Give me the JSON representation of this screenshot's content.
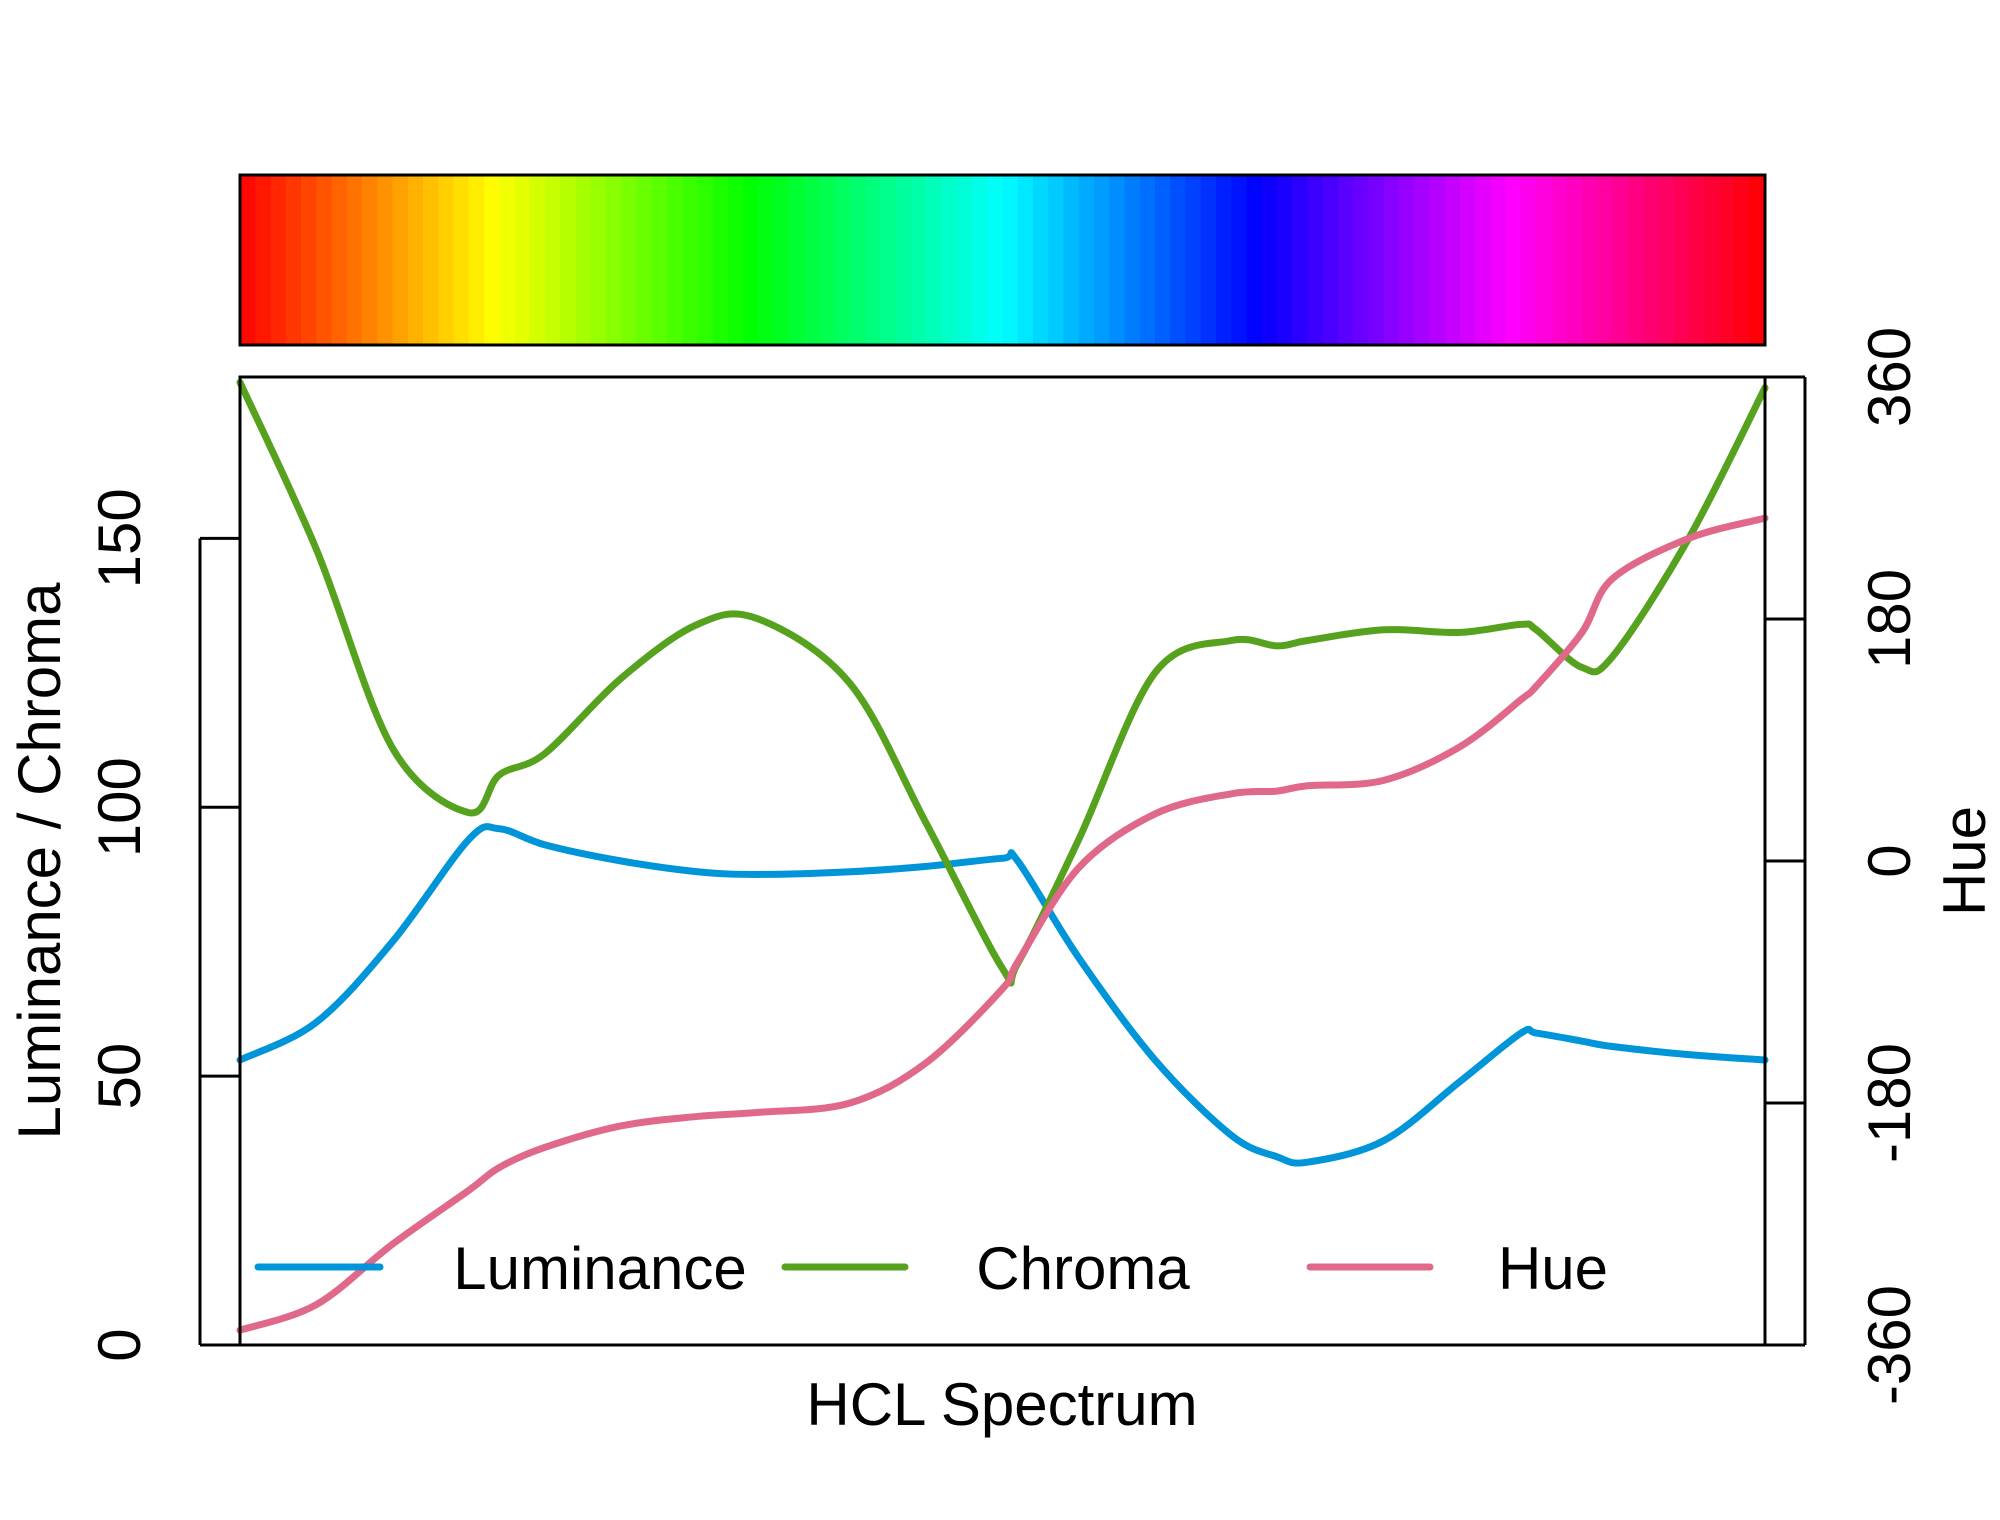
{
  "chart_data": {
    "type": "line",
    "title": "",
    "xlabel": "HCL Spectrum",
    "ylabel_left": "Luminance / Chroma",
    "ylabel_right": "Hue",
    "ylim_left": [
      0,
      180
    ],
    "ylim_right": [
      -360,
      360
    ],
    "yticks_left": [
      "0",
      "50",
      "100",
      "150"
    ],
    "yticks_right": [
      "-360",
      "-180",
      "0",
      "180",
      "360"
    ],
    "grid": false,
    "legend": {
      "placement": "bottom",
      "entries": [
        "Luminance",
        "Chroma",
        "Hue"
      ]
    },
    "x": [
      0,
      0.05,
      0.1,
      0.15,
      0.17,
      0.2,
      0.25,
      0.3,
      0.34,
      0.4,
      0.45,
      0.5,
      0.51,
      0.55,
      0.6,
      0.65,
      0.68,
      0.7,
      0.75,
      0.8,
      0.84,
      0.85,
      0.88,
      0.9,
      0.95,
      1.0
    ],
    "series": [
      {
        "name": "Luminance",
        "color": "#0095d9",
        "axis": "left",
        "values": [
          53,
          60,
          75,
          94,
          96,
          93,
          90,
          88,
          87.5,
          88,
          89,
          90.5,
          90,
          72,
          53,
          39,
          35,
          34,
          38,
          49,
          58,
          58,
          56.5,
          55.5,
          54,
          53
        ]
      },
      {
        "name": "Chroma",
        "color": "#56a21e",
        "axis": "left",
        "values": [
          179,
          148,
          111,
          99,
          106,
          110,
          124,
          134,
          135,
          123,
          97,
          70,
          71,
          94,
          125,
          131,
          130,
          131,
          133,
          132.5,
          134,
          133,
          126,
          128,
          150,
          178
        ]
      },
      {
        "name": "Hue",
        "color": "#e0698a",
        "axis": "right",
        "values": [
          -349,
          -330,
          -285,
          -245,
          -228,
          -213,
          -197,
          -190,
          -187,
          -180,
          -150,
          -95,
          -75,
          -5,
          35,
          50,
          52,
          56,
          60,
          85,
          120,
          130,
          170,
          210,
          240,
          255
        ]
      }
    ],
    "colorbar": {
      "description_colors": [
        "#ff0000",
        "#ff8000",
        "#ffff00",
        "#80ff00",
        "#00ff00",
        "#00ff80",
        "#00ffff",
        "#0080ff",
        "#0000ff",
        "#8000ff",
        "#ff00ff",
        "#ff0080",
        "#ff0000"
      ]
    }
  }
}
